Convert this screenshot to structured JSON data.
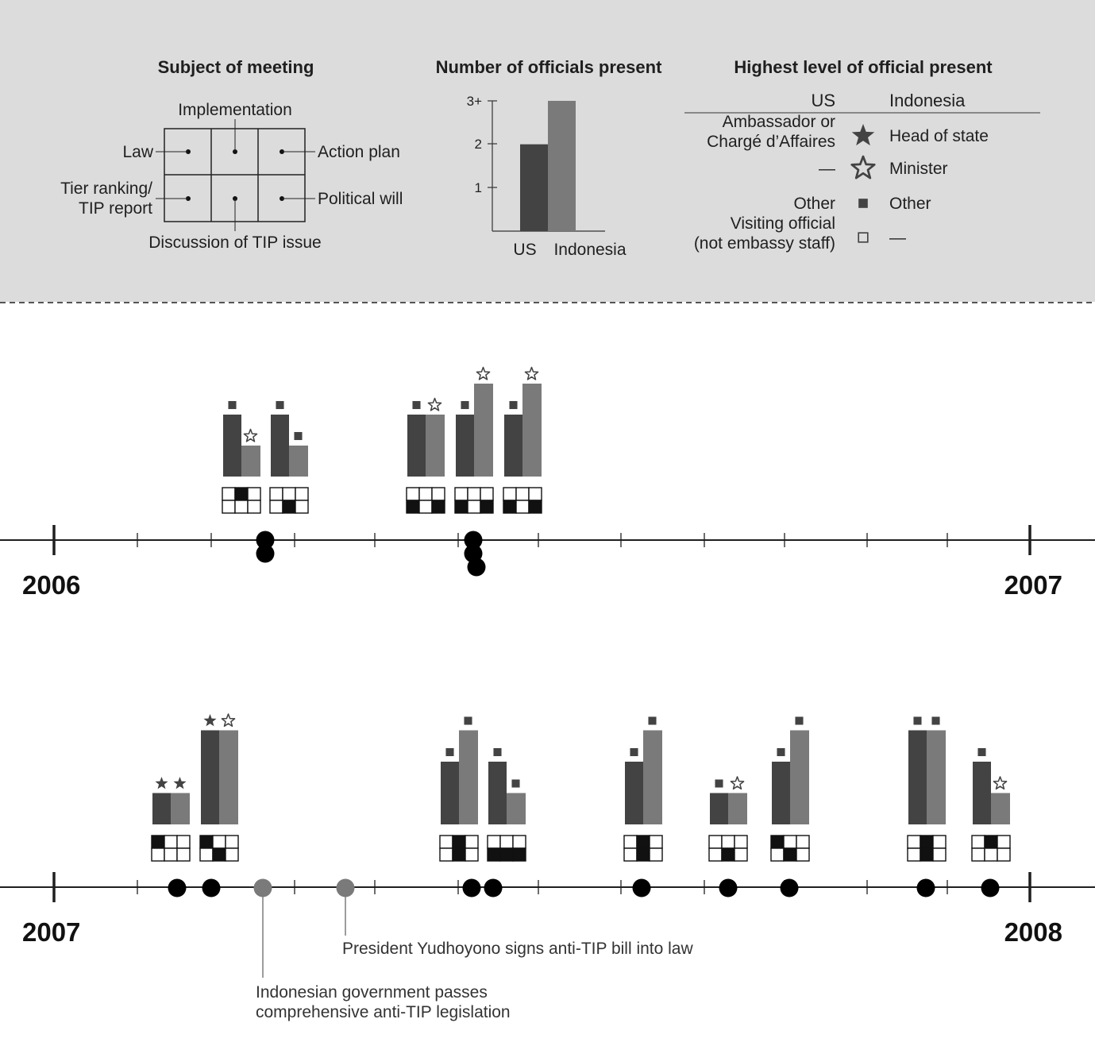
{
  "colors": {
    "legend_bg": "#dcdcdc",
    "us": "#434343",
    "indo": "#7a7a7a",
    "ink": "#1f1f1f",
    "event": "#7a7a7a"
  },
  "legend": {
    "subject": {
      "title": "Subject of meeting",
      "labels": {
        "implementation": "Implementation",
        "law": "Law",
        "action_plan": "Action plan",
        "tier_ranking_1": "Tier ranking/",
        "tier_ranking_2": "TIP report",
        "political_will": "Political will",
        "discussion": "Discussion of TIP issue"
      }
    },
    "count": {
      "title": "Number of officials present",
      "y_ticks": [
        "1",
        "2",
        "3+"
      ],
      "bars": [
        {
          "label": "US",
          "value": 2
        },
        {
          "label": "Indonesia",
          "value": 3
        }
      ]
    },
    "level": {
      "title": "Highest level of official present",
      "header_us": "US",
      "header_indo": "Indonesia",
      "rows": [
        {
          "us_lines": [
            "Ambassador or",
            "Chargé d’Affaires"
          ],
          "icon": "filled-star-icon",
          "indo": "Head of state"
        },
        {
          "us_lines": [
            "—"
          ],
          "icon": "outline-star-icon",
          "indo": "Minister"
        },
        {
          "us_lines": [
            "Other"
          ],
          "icon": "filled-square-icon",
          "indo": "Other"
        },
        {
          "us_lines": [
            "Visiting official",
            "(not embassy staff)"
          ],
          "icon": "outline-square-icon",
          "indo": "—"
        }
      ]
    }
  },
  "timelines": [
    {
      "start_label": "2006",
      "end_label": "2007",
      "meetings": [
        {
          "us": 2,
          "indo": 1,
          "us_level": "other",
          "indo_level": "minister",
          "grid": [
            0,
            1,
            0,
            0,
            0,
            0
          ]
        },
        {
          "us": 2,
          "indo": 1,
          "us_level": "other",
          "indo_level": "other",
          "grid": [
            0,
            0,
            0,
            0,
            1,
            0
          ]
        },
        {
          "us": 2,
          "indo": 2,
          "us_level": "other",
          "indo_level": "minister",
          "grid": [
            0,
            0,
            0,
            1,
            0,
            1
          ]
        },
        {
          "us": 2,
          "indo": 3,
          "us_level": "other",
          "indo_level": "minister",
          "grid": [
            0,
            0,
            0,
            1,
            0,
            1
          ]
        },
        {
          "us": 2,
          "indo": 3,
          "us_level": "other",
          "indo_level": "minister",
          "grid": [
            0,
            0,
            0,
            1,
            0,
            1
          ]
        }
      ],
      "events": []
    },
    {
      "start_label": "2007",
      "end_label": "2008",
      "meetings": [
        {
          "us": 1,
          "indo": 1,
          "us_level": "ambassador",
          "indo_level": "head_of_state",
          "grid": [
            1,
            0,
            0,
            0,
            0,
            0
          ]
        },
        {
          "us": 3,
          "indo": 3,
          "us_level": "ambassador",
          "indo_level": "minister",
          "grid": [
            1,
            0,
            0,
            0,
            1,
            0
          ]
        },
        {
          "us": 2,
          "indo": 3,
          "us_level": "other",
          "indo_level": "other",
          "grid": [
            0,
            1,
            0,
            0,
            1,
            0
          ]
        },
        {
          "us": 2,
          "indo": 1,
          "us_level": "other",
          "indo_level": "other",
          "grid": [
            0,
            0,
            0,
            1,
            1,
            1
          ]
        },
        {
          "us": 2,
          "indo": 3,
          "us_level": "other",
          "indo_level": "other",
          "grid": [
            0,
            1,
            0,
            0,
            1,
            0
          ]
        },
        {
          "us": 1,
          "indo": 1,
          "us_level": "other",
          "indo_level": "minister",
          "grid": [
            0,
            0,
            0,
            0,
            1,
            0
          ]
        },
        {
          "us": 2,
          "indo": 3,
          "us_level": "other",
          "indo_level": "other",
          "grid": [
            1,
            0,
            0,
            0,
            1,
            0
          ]
        },
        {
          "us": 3,
          "indo": 3,
          "us_level": "other",
          "indo_level": "other",
          "grid": [
            0,
            1,
            0,
            0,
            1,
            0
          ]
        },
        {
          "us": 2,
          "indo": 1,
          "us_level": "other",
          "indo_level": "minister",
          "grid": [
            0,
            1,
            0,
            0,
            0,
            0
          ]
        }
      ],
      "events": [
        {
          "label_lines": [
            "Indonesian government passes",
            "comprehensive anti-TIP legislation"
          ]
        },
        {
          "label_lines": [
            "President Yudhoyono signs anti-TIP bill into law"
          ]
        }
      ]
    }
  ]
}
